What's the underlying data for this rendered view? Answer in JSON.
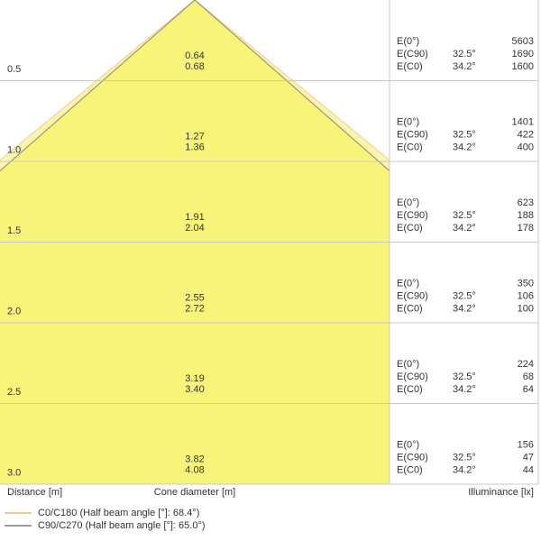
{
  "rows": [
    {
      "distance": "0.5",
      "diameters": [
        "0.64",
        "0.68"
      ],
      "illuminance": [
        {
          "label": "E(0°)",
          "value": "5603"
        },
        {
          "label": "E(C90)",
          "angle": "32.5°",
          "value": "1690"
        },
        {
          "label": "E(C0)",
          "angle": "34.2°",
          "value": "1600"
        }
      ]
    },
    {
      "distance": "1.0",
      "diameters": [
        "1.27",
        "1.36"
      ],
      "illuminance": [
        {
          "label": "E(0°)",
          "value": "1401"
        },
        {
          "label": "E(C90)",
          "angle": "32.5°",
          "value": "422"
        },
        {
          "label": "E(C0)",
          "angle": "34.2°",
          "value": "400"
        }
      ]
    },
    {
      "distance": "1.5",
      "diameters": [
        "1.91",
        "2.04"
      ],
      "illuminance": [
        {
          "label": "E(0°)",
          "value": "623"
        },
        {
          "label": "E(C90)",
          "angle": "32.5°",
          "value": "188"
        },
        {
          "label": "E(C0)",
          "angle": "34.2°",
          "value": "178"
        }
      ]
    },
    {
      "distance": "2.0",
      "diameters": [
        "2.55",
        "2.72"
      ],
      "illuminance": [
        {
          "label": "E(0°)",
          "value": "350"
        },
        {
          "label": "E(C90)",
          "angle": "32.5°",
          "value": "106"
        },
        {
          "label": "E(C0)",
          "angle": "34.2°",
          "value": "100"
        }
      ]
    },
    {
      "distance": "2.5",
      "diameters": [
        "3.19",
        "3.40"
      ],
      "illuminance": [
        {
          "label": "E(0°)",
          "value": "224"
        },
        {
          "label": "E(C90)",
          "angle": "32.5°",
          "value": "68"
        },
        {
          "label": "E(C0)",
          "angle": "34.2°",
          "value": "64"
        }
      ]
    },
    {
      "distance": "3.0",
      "diameters": [
        "3.82",
        "4.08"
      ],
      "illuminance": [
        {
          "label": "E(0°)",
          "value": "156"
        },
        {
          "label": "E(C90)",
          "angle": "32.5°",
          "value": "47"
        },
        {
          "label": "E(C0)",
          "angle": "34.2°",
          "value": "44"
        }
      ]
    }
  ],
  "footer": {
    "distance": "Distance [m]",
    "diameter": "Cone diameter [m]",
    "illuminance": "Illuminance [lx]"
  },
  "legend": [
    {
      "label": "C0/C180 (Half beam angle [°]: 68.4°)",
      "color": "#f2b96e"
    },
    {
      "label": "C90/C270 (Half beam angle [°]: 65.0°)",
      "color": "#7f7f7f"
    }
  ]
}
